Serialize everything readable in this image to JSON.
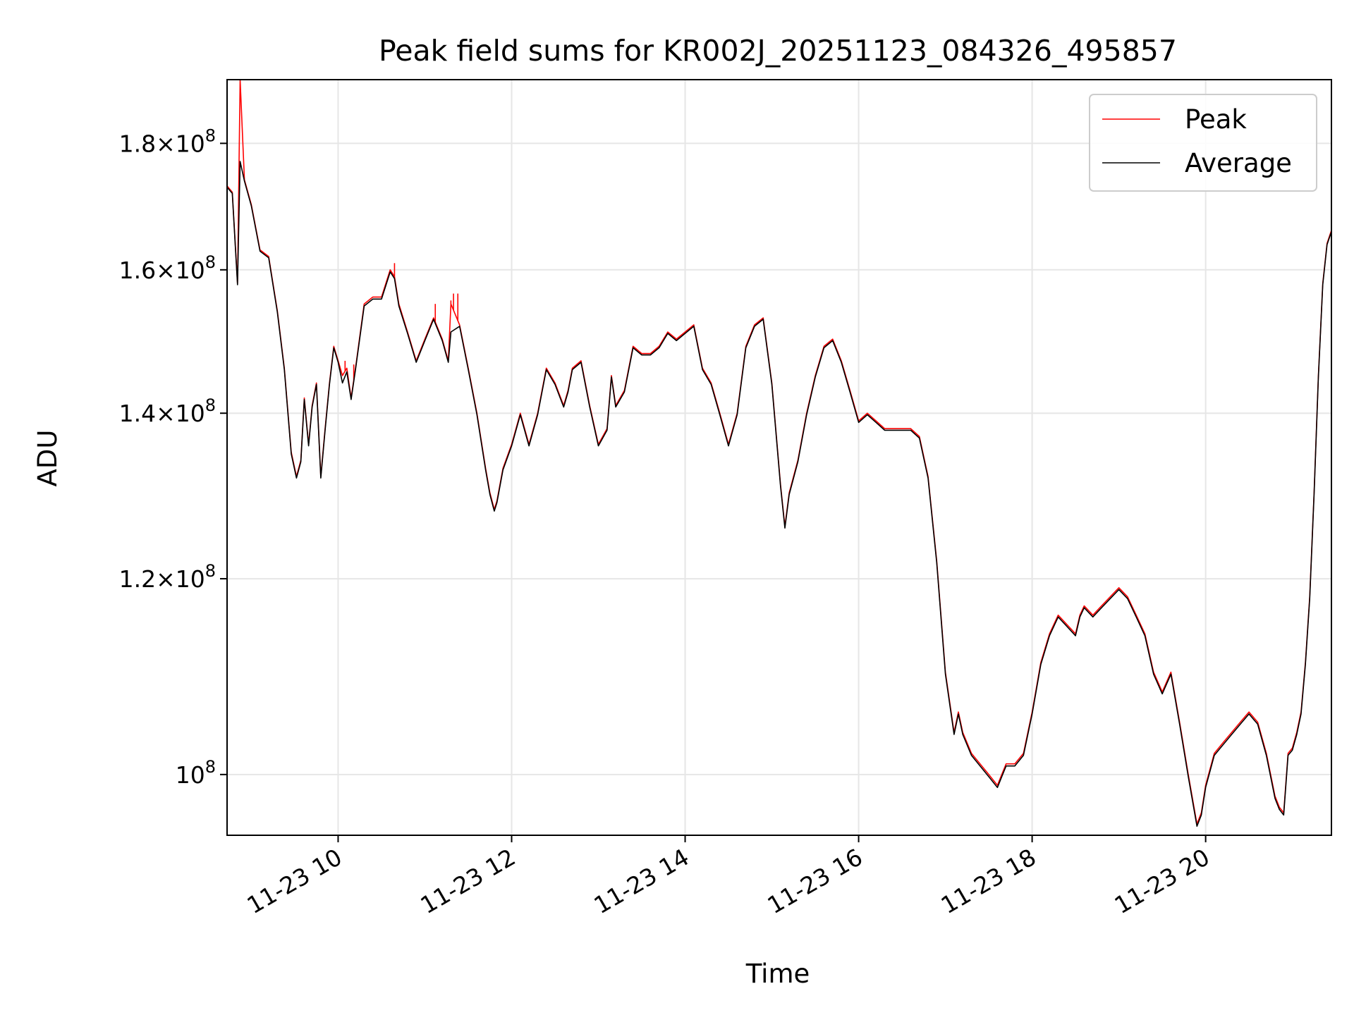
{
  "chart_data": {
    "type": "line",
    "title": "Peak field sums for KR002J_20251123_084326_495857",
    "xlabel": "Time",
    "ylabel": "ADU",
    "x_unit": "hours of 2025-11-23",
    "xlim": [
      8.72,
      21.45
    ],
    "ylim": [
      94500000,
      191000000
    ],
    "yscale": "log",
    "grid": true,
    "legend_position": "top-right",
    "x_ticks": [
      {
        "value": 10,
        "label": "11-23 10"
      },
      {
        "value": 12,
        "label": "11-23 12"
      },
      {
        "value": 14,
        "label": "11-23 14"
      },
      {
        "value": 16,
        "label": "11-23 16"
      },
      {
        "value": 18,
        "label": "11-23 18"
      },
      {
        "value": 20,
        "label": "11-23 20"
      }
    ],
    "y_ticks": [
      {
        "value": 100000000,
        "mantissa": "",
        "exponent": "8"
      },
      {
        "value": 120000000,
        "mantissa": "1.2",
        "exponent": "8"
      },
      {
        "value": 140000000,
        "mantissa": "1.4",
        "exponent": "8"
      },
      {
        "value": 160000000,
        "mantissa": "1.6",
        "exponent": "8"
      },
      {
        "value": 180000000,
        "mantissa": "1.8",
        "exponent": "8"
      }
    ],
    "colors": {
      "peak": "#ff0000",
      "average": "#000000",
      "grid": "#e6e6e6"
    },
    "series": [
      {
        "name": "Peak",
        "color": "#ff0000",
        "x": [
          8.72,
          8.78,
          8.84,
          8.87,
          8.92,
          9.0,
          9.1,
          9.2,
          9.3,
          9.38,
          9.46,
          9.52,
          9.57,
          9.61,
          9.66,
          9.7,
          9.75,
          9.8,
          9.85,
          9.9,
          9.95,
          10.0,
          10.05,
          10.1,
          10.15,
          10.2,
          10.3,
          10.4,
          10.5,
          10.6,
          10.65,
          10.7,
          10.8,
          10.9,
          11.0,
          11.1,
          11.2,
          11.27,
          11.3,
          11.4,
          11.5,
          11.6,
          11.7,
          11.75,
          11.8,
          11.83,
          11.9,
          12.0,
          12.1,
          12.15,
          12.2,
          12.3,
          12.4,
          12.5,
          12.6,
          12.65,
          12.7,
          12.8,
          12.9,
          13.0,
          13.1,
          13.15,
          13.2,
          13.3,
          13.4,
          13.5,
          13.6,
          13.7,
          13.8,
          13.9,
          14.0,
          14.1,
          14.2,
          14.3,
          14.4,
          14.5,
          14.6,
          14.7,
          14.8,
          14.9,
          15.0,
          15.1,
          15.15,
          15.2,
          15.3,
          15.4,
          15.5,
          15.6,
          15.7,
          15.8,
          15.9,
          16.0,
          16.1,
          16.2,
          16.3,
          16.4,
          16.5,
          16.6,
          16.7,
          16.8,
          16.9,
          17.0,
          17.1,
          17.15,
          17.2,
          17.3,
          17.4,
          17.5,
          17.6,
          17.65,
          17.7,
          17.8,
          17.9,
          18.0,
          18.1,
          18.2,
          18.3,
          18.4,
          18.5,
          18.55,
          18.6,
          18.7,
          18.8,
          18.9,
          19.0,
          19.1,
          19.2,
          19.3,
          19.4,
          19.5,
          19.6,
          19.7,
          19.8,
          19.9,
          19.95,
          20.0,
          20.1,
          20.2,
          20.3,
          20.4,
          20.5,
          20.6,
          20.7,
          20.8,
          20.85,
          20.9,
          20.95,
          21.0,
          21.05,
          21.1,
          21.15,
          21.2,
          21.25,
          21.3,
          21.35,
          21.4,
          21.45
        ],
        "y": [
          173000000,
          172000000,
          158000000,
          191000000,
          174000000,
          170000000,
          163000000,
          162000000,
          154000000,
          146000000,
          135000000,
          132000000,
          134000000,
          142000000,
          136000000,
          141000000,
          144000000,
          132000000,
          138000000,
          144000000,
          149000000,
          147000000,
          145000000,
          146000000,
          142000000,
          146000000,
          155000000,
          156000000,
          156000000,
          160000000,
          159000000,
          155000000,
          151000000,
          147000000,
          150000000,
          153000000,
          150000000,
          147000000,
          155000000,
          152000000,
          146000000,
          140000000,
          133000000,
          130000000,
          128000000,
          129000000,
          133000000,
          136000000,
          140000000,
          138000000,
          136000000,
          140000000,
          146000000,
          144000000,
          141000000,
          143000000,
          146000000,
          147000000,
          141000000,
          136000000,
          138000000,
          145000000,
          141000000,
          143000000,
          149000000,
          148000000,
          148000000,
          149000000,
          151000000,
          150000000,
          151000000,
          152000000,
          146000000,
          144000000,
          140000000,
          136000000,
          140000000,
          149000000,
          152000000,
          153000000,
          144000000,
          131000000,
          126000000,
          130000000,
          134000000,
          140000000,
          145000000,
          149000000,
          150000000,
          147000000,
          143000000,
          139000000,
          140000000,
          139000000,
          138000000,
          138000000,
          138000000,
          138000000,
          137000000,
          132000000,
          122000000,
          110000000,
          104000000,
          106000000,
          104000000,
          102000000,
          101000000,
          100000000,
          99000000,
          100000000,
          101000000,
          101000000,
          102000000,
          106000000,
          111000000,
          114000000,
          116000000,
          115000000,
          114000000,
          116000000,
          117000000,
          116000000,
          117000000,
          118000000,
          119000000,
          118000000,
          116000000,
          114000000,
          110000000,
          108000000,
          110000000,
          105000000,
          100000000,
          95500000,
          96500000,
          99000000,
          102000000,
          103000000,
          104000000,
          105000000,
          106000000,
          105000000,
          102000000,
          98000000,
          97000000,
          96500000,
          102000000,
          102500000,
          104000000,
          106000000,
          111000000,
          118000000,
          130000000,
          145000000,
          158000000,
          164000000,
          166000000
        ],
        "spikes": [
          {
            "x": 8.87,
            "y": 191000000
          },
          {
            "x": 10.08,
            "y": 147000000
          },
          {
            "x": 10.18,
            "y": 146500000
          },
          {
            "x": 10.65,
            "y": 161000000
          },
          {
            "x": 11.12,
            "y": 155000000
          },
          {
            "x": 11.3,
            "y": 155500000
          },
          {
            "x": 11.33,
            "y": 156500000
          },
          {
            "x": 11.38,
            "y": 156500000
          }
        ]
      },
      {
        "name": "Average",
        "color": "#000000",
        "x": [
          8.72,
          8.78,
          8.84,
          8.87,
          8.92,
          9.0,
          9.1,
          9.2,
          9.3,
          9.38,
          9.46,
          9.52,
          9.57,
          9.61,
          9.66,
          9.7,
          9.75,
          9.8,
          9.85,
          9.9,
          9.95,
          10.0,
          10.05,
          10.1,
          10.15,
          10.2,
          10.3,
          10.4,
          10.5,
          10.6,
          10.65,
          10.7,
          10.8,
          10.9,
          11.0,
          11.1,
          11.2,
          11.27,
          11.3,
          11.4,
          11.5,
          11.6,
          11.7,
          11.75,
          11.8,
          11.83,
          11.9,
          12.0,
          12.1,
          12.15,
          12.2,
          12.3,
          12.4,
          12.5,
          12.6,
          12.65,
          12.7,
          12.8,
          12.9,
          13.0,
          13.1,
          13.15,
          13.2,
          13.3,
          13.4,
          13.5,
          13.6,
          13.7,
          13.8,
          13.9,
          14.0,
          14.1,
          14.2,
          14.3,
          14.4,
          14.5,
          14.6,
          14.7,
          14.8,
          14.9,
          15.0,
          15.1,
          15.15,
          15.2,
          15.3,
          15.4,
          15.5,
          15.6,
          15.7,
          15.8,
          15.9,
          16.0,
          16.1,
          16.2,
          16.3,
          16.4,
          16.5,
          16.6,
          16.7,
          16.8,
          16.9,
          17.0,
          17.1,
          17.15,
          17.2,
          17.3,
          17.4,
          17.5,
          17.6,
          17.65,
          17.7,
          17.8,
          17.9,
          18.0,
          18.1,
          18.2,
          18.3,
          18.4,
          18.5,
          18.55,
          18.6,
          18.7,
          18.8,
          18.9,
          19.0,
          19.1,
          19.2,
          19.3,
          19.4,
          19.5,
          19.6,
          19.7,
          19.8,
          19.9,
          19.95,
          20.0,
          20.1,
          20.2,
          20.3,
          20.4,
          20.5,
          20.6,
          20.7,
          20.8,
          20.85,
          20.9,
          20.95,
          21.0,
          21.05,
          21.1,
          21.15,
          21.2,
          21.25,
          21.3,
          21.35,
          21.4,
          21.45
        ],
        "y": [
          172800000,
          171800000,
          157800000,
          177000000,
          173800000,
          169800000,
          162800000,
          161800000,
          153800000,
          145800000,
          134800000,
          131800000,
          133800000,
          141800000,
          135800000,
          140800000,
          143800000,
          131800000,
          137800000,
          143800000,
          148800000,
          146800000,
          144000000,
          145500000,
          141800000,
          145800000,
          154700000,
          155700000,
          155700000,
          159700000,
          158700000,
          154700000,
          150800000,
          146800000,
          149800000,
          152800000,
          149800000,
          146800000,
          151000000,
          151800000,
          145800000,
          139800000,
          132800000,
          129800000,
          127800000,
          128800000,
          132800000,
          135800000,
          139800000,
          137800000,
          135800000,
          139800000,
          145800000,
          143800000,
          140800000,
          142800000,
          145800000,
          146800000,
          140800000,
          135800000,
          137800000,
          144800000,
          140800000,
          142800000,
          148800000,
          147800000,
          147800000,
          148800000,
          150800000,
          149800000,
          150800000,
          151800000,
          145800000,
          143800000,
          139800000,
          135800000,
          139800000,
          148800000,
          151800000,
          152800000,
          143800000,
          130800000,
          125800000,
          129800000,
          133800000,
          139800000,
          144800000,
          148800000,
          149800000,
          146800000,
          142800000,
          138800000,
          139800000,
          138800000,
          137800000,
          137800000,
          137800000,
          137800000,
          136800000,
          131800000,
          121800000,
          109800000,
          103800000,
          105800000,
          103800000,
          101800000,
          100800000,
          99800000,
          98800000,
          99800000,
          100800000,
          100800000,
          101800000,
          105800000,
          110800000,
          113800000,
          115800000,
          114800000,
          113800000,
          115800000,
          116800000,
          115800000,
          116800000,
          117800000,
          118800000,
          117800000,
          115800000,
          113800000,
          109800000,
          107800000,
          109800000,
          104800000,
          99800000,
          95300000,
          96300000,
          98800000,
          101800000,
          102800000,
          103800000,
          104800000,
          105800000,
          104800000,
          101800000,
          97800000,
          96800000,
          96300000,
          101800000,
          102300000,
          103800000,
          105800000,
          110800000,
          117800000,
          129800000,
          144800000,
          157800000,
          163800000,
          165800000
        ]
      }
    ]
  }
}
